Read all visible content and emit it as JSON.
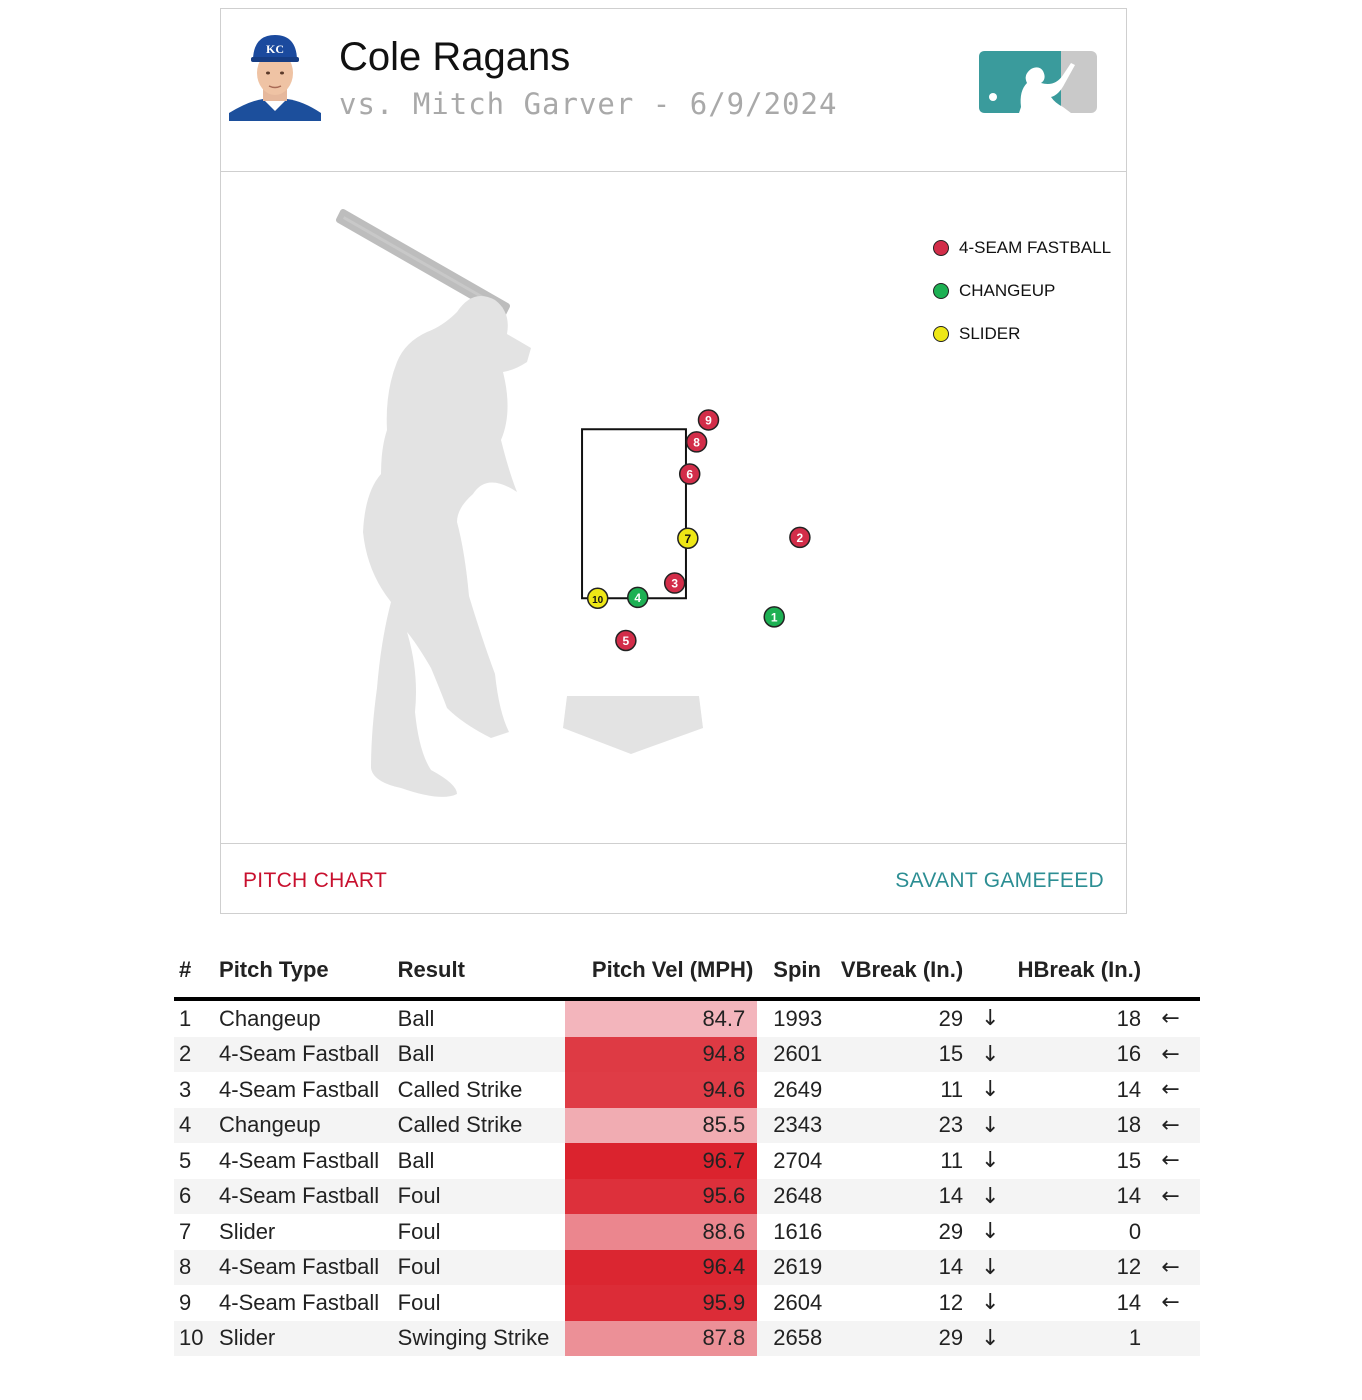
{
  "header": {
    "pitcher_name": "Cole Ragans",
    "matchup": "vs. Mitch Garver - 6/9/2024",
    "team_logo_text": "KC"
  },
  "colors": {
    "fastball": "#d22d49",
    "changeup": "#1db053",
    "slider": "#eee716"
  },
  "chart_data": {
    "type": "scatter",
    "legend_position": "top-right",
    "legend": [
      {
        "label": "4-SEAM FASTBALL",
        "color": "#d22d49"
      },
      {
        "label": "CHANGEUP",
        "color": "#1db053"
      },
      {
        "label": "SLIDER",
        "color": "#eee716"
      }
    ],
    "strike_zone": {
      "x": [
        -0.83,
        0.83
      ],
      "z": [
        1.5,
        3.5
      ]
    },
    "points": [
      {
        "n": "1",
        "pitch": "Changeup",
        "x": 2.24,
        "z": 1.28,
        "color": "#1db053"
      },
      {
        "n": "2",
        "pitch": "4-Seam Fastball",
        "x": 2.65,
        "z": 2.22,
        "color": "#d22d49"
      },
      {
        "n": "3",
        "pitch": "4-Seam Fastball",
        "x": 0.65,
        "z": 1.68,
        "color": "#d22d49"
      },
      {
        "n": "4",
        "pitch": "Changeup",
        "x": 0.06,
        "z": 1.51,
        "color": "#1db053"
      },
      {
        "n": "5",
        "pitch": "4-Seam Fastball",
        "x": -0.13,
        "z": 1.0,
        "color": "#d22d49"
      },
      {
        "n": "6",
        "pitch": "4-Seam Fastball",
        "x": 0.89,
        "z": 2.97,
        "color": "#d22d49"
      },
      {
        "n": "7",
        "pitch": "Slider",
        "x": 0.86,
        "z": 2.21,
        "color": "#eee716"
      },
      {
        "n": "8",
        "pitch": "4-Seam Fastball",
        "x": 1.0,
        "z": 3.35,
        "color": "#d22d49"
      },
      {
        "n": "9",
        "pitch": "4-Seam Fastball",
        "x": 1.19,
        "z": 3.61,
        "color": "#d22d49"
      },
      {
        "n": "10",
        "pitch": "Slider",
        "x": -0.58,
        "z": 1.5,
        "color": "#eee716"
      }
    ]
  },
  "footer": {
    "left_link": "PITCH CHART",
    "right_link": "SAVANT GAMEFEED"
  },
  "table": {
    "headers": {
      "index": "#",
      "pitch_type": "Pitch Type",
      "result": "Result",
      "velocity": "Pitch Vel (MPH)",
      "spin": "Spin",
      "vbreak": "VBreak (In.)",
      "hbreak": "HBreak (In.)"
    },
    "rows": [
      {
        "n": "1",
        "type": "Changeup",
        "result": "Ball",
        "vel": "84.7",
        "spin": "1993",
        "vbreak": "29",
        "varrow": "↓",
        "hbreak": "18",
        "harrow": "←"
      },
      {
        "n": "2",
        "type": "4-Seam Fastball",
        "result": "Ball",
        "vel": "94.8",
        "spin": "2601",
        "vbreak": "15",
        "varrow": "↓",
        "hbreak": "16",
        "harrow": "←"
      },
      {
        "n": "3",
        "type": "4-Seam Fastball",
        "result": "Called Strike",
        "vel": "94.6",
        "spin": "2649",
        "vbreak": "11",
        "varrow": "↓",
        "hbreak": "14",
        "harrow": "←"
      },
      {
        "n": "4",
        "type": "Changeup",
        "result": "Called Strike",
        "vel": "85.5",
        "spin": "2343",
        "vbreak": "23",
        "varrow": "↓",
        "hbreak": "18",
        "harrow": "←"
      },
      {
        "n": "5",
        "type": "4-Seam Fastball",
        "result": "Ball",
        "vel": "96.7",
        "spin": "2704",
        "vbreak": "11",
        "varrow": "↓",
        "hbreak": "15",
        "harrow": "←"
      },
      {
        "n": "6",
        "type": "4-Seam Fastball",
        "result": "Foul",
        "vel": "95.6",
        "spin": "2648",
        "vbreak": "14",
        "varrow": "↓",
        "hbreak": "14",
        "harrow": "←"
      },
      {
        "n": "7",
        "type": "Slider",
        "result": "Foul",
        "vel": "88.6",
        "spin": "1616",
        "vbreak": "29",
        "varrow": "↓",
        "hbreak": "0",
        "harrow": ""
      },
      {
        "n": "8",
        "type": "4-Seam Fastball",
        "result": "Foul",
        "vel": "96.4",
        "spin": "2619",
        "vbreak": "14",
        "varrow": "↓",
        "hbreak": "12",
        "harrow": "←"
      },
      {
        "n": "9",
        "type": "4-Seam Fastball",
        "result": "Foul",
        "vel": "95.9",
        "spin": "2604",
        "vbreak": "12",
        "varrow": "↓",
        "hbreak": "14",
        "harrow": "←"
      },
      {
        "n": "10",
        "type": "Slider",
        "result": "Swinging Strike",
        "vel": "87.8",
        "spin": "2658",
        "vbreak": "29",
        "varrow": "↓",
        "hbreak": "1",
        "harrow": ""
      }
    ]
  }
}
